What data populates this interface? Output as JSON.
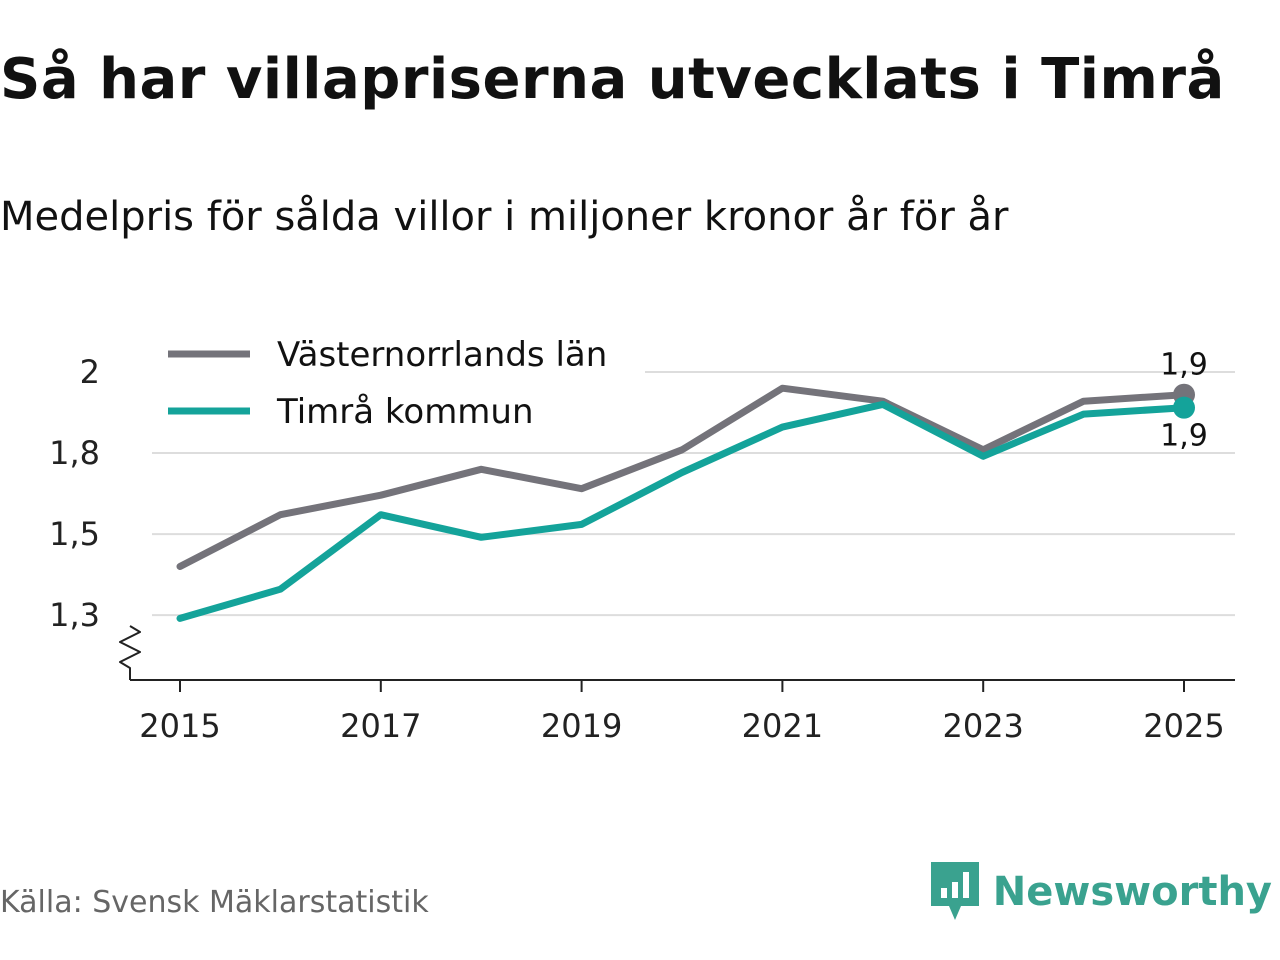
{
  "title": "Så har villapriserna utvecklats i Timrå",
  "subtitle": "Medelpris för sålda villor i miljoner kronor år för år",
  "source": "Källa: Svensk Mäklarstatistik",
  "brand": {
    "name": "Newsworthy",
    "icon": "newsworthy-logo-icon",
    "color": "#3aa28f"
  },
  "colors": {
    "series_lan": "#74737a",
    "series_timra": "#14a39a",
    "grid": "#dddddd",
    "axis": "#222222"
  },
  "chart_data": {
    "type": "line",
    "title": "Så har villapriserna utvecklats i Timrå",
    "subtitle": "Medelpris för sålda villor i miljoner kronor år för år",
    "xlabel": "",
    "ylabel": "",
    "x": [
      2015,
      2016,
      2017,
      2018,
      2019,
      2020,
      2021,
      2022,
      2023,
      2024,
      2025
    ],
    "x_ticks": [
      "2015",
      "2017",
      "2019",
      "2021",
      "2023",
      "2025"
    ],
    "y_ticks": [
      {
        "value": 1.25,
        "label": "1,3"
      },
      {
        "value": 1.5,
        "label": "1,5"
      },
      {
        "value": 1.75,
        "label": "1,8"
      },
      {
        "value": 2.0,
        "label": "2"
      }
    ],
    "ylim": [
      1.05,
      2.0
    ],
    "y_axis_break": true,
    "legend_position": "top-left",
    "grid": true,
    "series": [
      {
        "name": "Västernorrlands län",
        "color": "#74737a",
        "values": [
          1.4,
          1.56,
          1.62,
          1.7,
          1.64,
          1.76,
          1.95,
          1.91,
          1.76,
          1.91,
          1.93
        ],
        "end_label": "1,9"
      },
      {
        "name": "Timrå kommun",
        "color": "#14a39a",
        "values": [
          1.24,
          1.33,
          1.56,
          1.49,
          1.53,
          1.69,
          1.83,
          1.9,
          1.74,
          1.87,
          1.89
        ],
        "end_label": "1,9"
      }
    ]
  }
}
